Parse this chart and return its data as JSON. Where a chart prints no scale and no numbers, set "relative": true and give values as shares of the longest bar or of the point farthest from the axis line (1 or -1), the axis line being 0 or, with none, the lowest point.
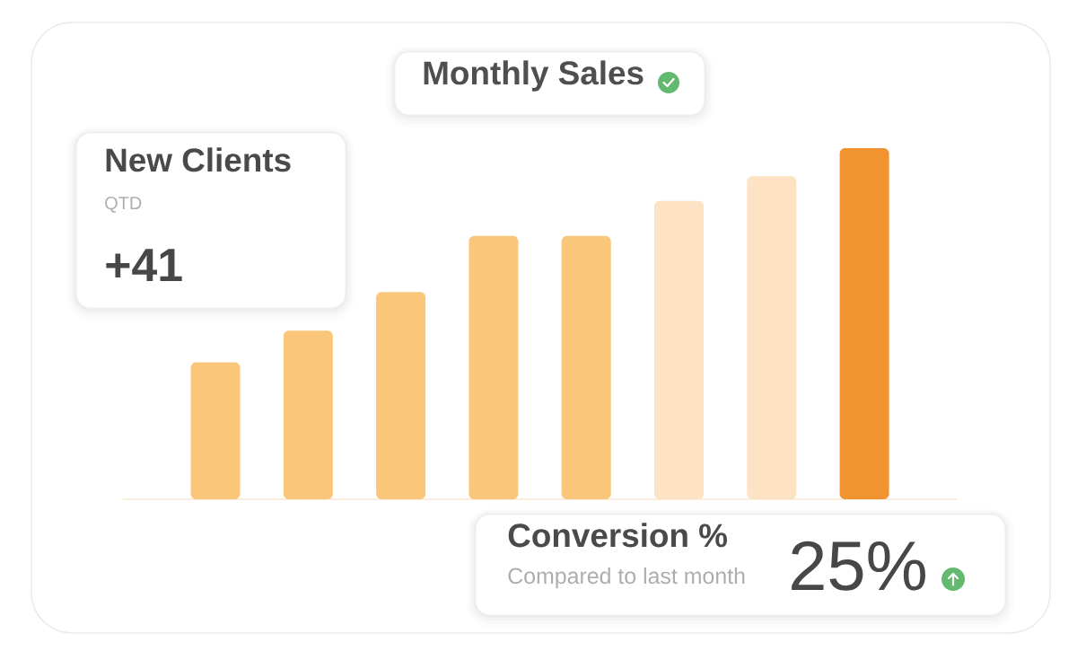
{
  "chart_data": [
    {
      "type": "bar",
      "title": "Monthly Sales",
      "categories": [
        null,
        null,
        null,
        null,
        null,
        null,
        null,
        null
      ],
      "values": [
        0.39,
        0.48,
        0.59,
        0.75,
        0.75,
        0.85,
        0.92,
        1
      ],
      "colors": [
        "#fac67a",
        "#fac67a",
        "#fac67a",
        "#fac67a",
        "#fac67a",
        "#fde3c3",
        "#fde3c3",
        "#f29332"
      ],
      "relative": true
    },
    {
      "type": "other",
      "title": "New Clients",
      "subtitle": "QTD",
      "annotations": [
        "+41"
      ]
    },
    {
      "type": "other",
      "title": "Conversion %",
      "subtitle": "Compared to last month",
      "annotations": [
        "25%"
      ]
    }
  ]
}
